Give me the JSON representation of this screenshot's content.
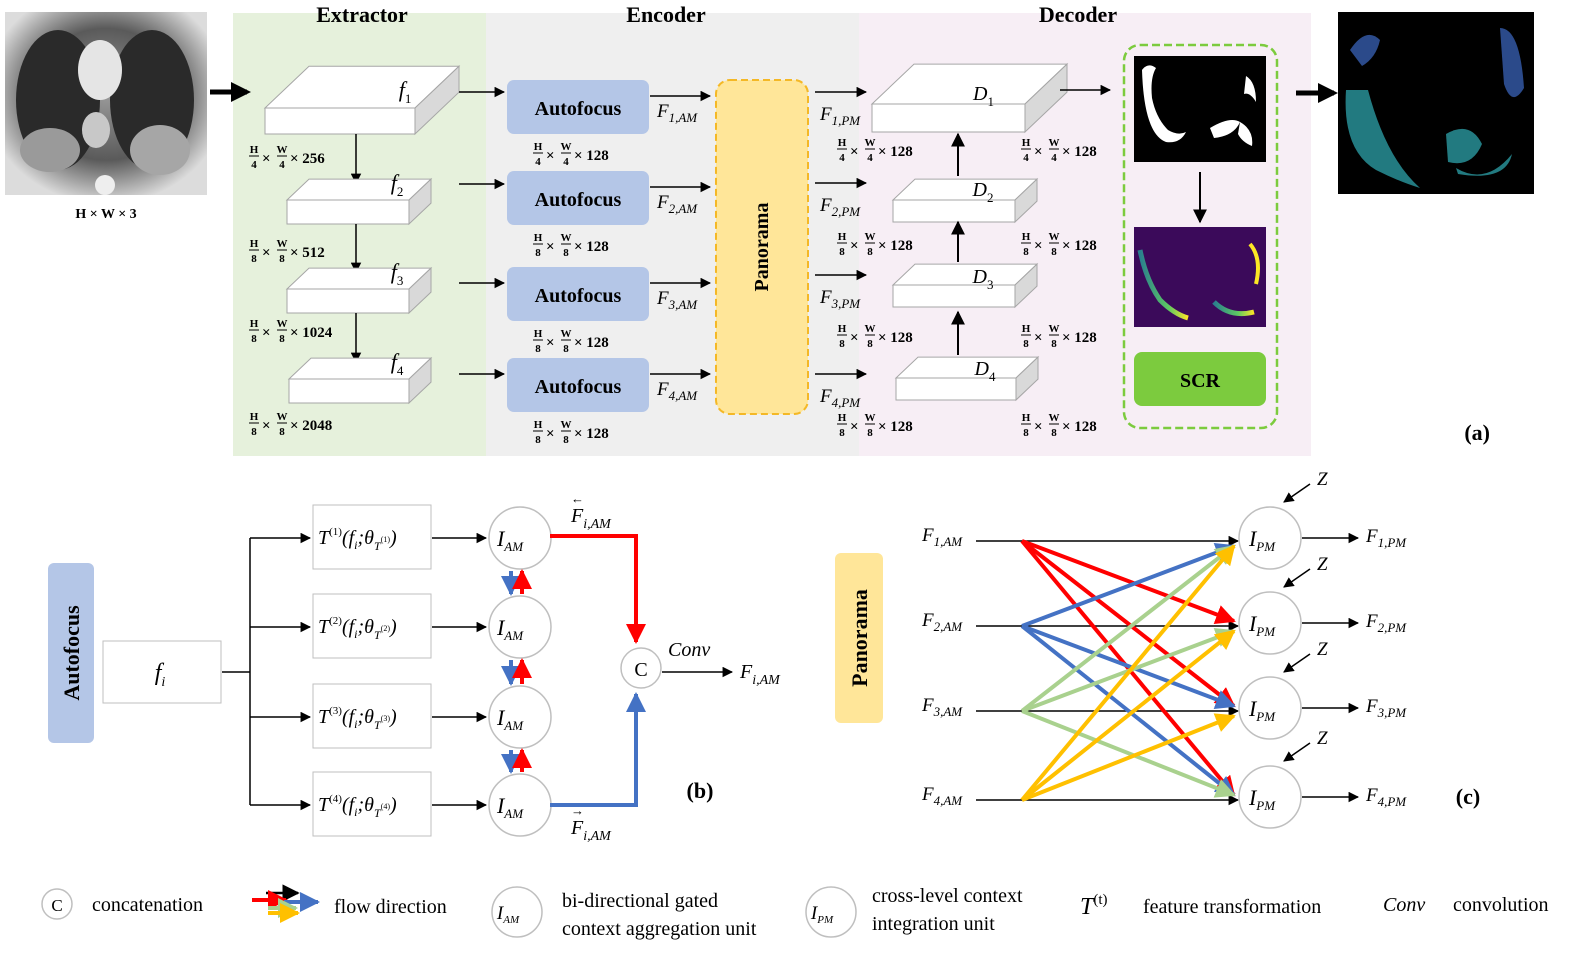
{
  "panel_a": {
    "sections": {
      "extractor": "Extractor",
      "encoder": "Encoder",
      "decoder": "Decoder"
    },
    "input_size": "H × W × 3",
    "extractor_blocks": [
      {
        "label": "f",
        "sub": "1",
        "dim": "256",
        "fh": "4",
        "fw": "4"
      },
      {
        "label": "f",
        "sub": "2",
        "dim": "512",
        "fh": "8",
        "fw": "8"
      },
      {
        "label": "f",
        "sub": "3",
        "dim": "1024",
        "fh": "8",
        "fw": "8"
      },
      {
        "label": "f",
        "sub": "4",
        "dim": "2048",
        "fh": "8",
        "fw": "8"
      }
    ],
    "autofocus_label": "Autofocus",
    "encoder_dims": [
      {
        "fh": "4",
        "fw": "4",
        "dim": "128"
      },
      {
        "fh": "8",
        "fw": "8",
        "dim": "128"
      },
      {
        "fh": "8",
        "fw": "8",
        "dim": "128"
      },
      {
        "fh": "8",
        "fw": "8",
        "dim": "128"
      }
    ],
    "am_outputs": [
      {
        "main": "F",
        "sub": "1,AM"
      },
      {
        "main": "F",
        "sub": "2,AM"
      },
      {
        "main": "F",
        "sub": "3,AM"
      },
      {
        "main": "F",
        "sub": "4,AM"
      }
    ],
    "panorama_label": "Panorama",
    "pm_outputs": [
      {
        "main": "F",
        "sub": "1,PM"
      },
      {
        "main": "F",
        "sub": "2,PM"
      },
      {
        "main": "F",
        "sub": "3,PM"
      },
      {
        "main": "F",
        "sub": "4,PM"
      }
    ],
    "decoder_blocks": [
      {
        "label": "D",
        "sub": "1"
      },
      {
        "label": "D",
        "sub": "2"
      },
      {
        "label": "D",
        "sub": "3"
      },
      {
        "label": "D",
        "sub": "4"
      }
    ],
    "decoder_dims_left": [
      {
        "fh": "4",
        "fw": "4",
        "dim": "128"
      },
      {
        "fh": "8",
        "fw": "8",
        "dim": "128"
      },
      {
        "fh": "8",
        "fw": "8",
        "dim": "128"
      },
      {
        "fh": "8",
        "fw": "8",
        "dim": "128"
      }
    ],
    "decoder_dims_right": [
      {
        "fh": "4",
        "fw": "4",
        "dim": "128"
      },
      {
        "fh": "8",
        "fw": "8",
        "dim": "128"
      },
      {
        "fh": "8",
        "fw": "8",
        "dim": "128"
      },
      {
        "fh": "8",
        "fw": "8",
        "dim": "128"
      }
    ],
    "scr_label": "SCR",
    "panel_tag": "(a)"
  },
  "panel_b": {
    "autofocus_label": "Autofocus",
    "input": {
      "main": "f",
      "sub": "i"
    },
    "transforms": [
      {
        "main": "T",
        "sup": "(1)",
        "arg": "(f",
        "argsub": "i",
        "rest": ";θ",
        "theta_sub": "T",
        "theta_sup": "(1)"
      },
      {
        "main": "T",
        "sup": "(2)",
        "arg": "(f",
        "argsub": "i",
        "rest": ";θ",
        "theta_sub": "T",
        "theta_sup": "(2)"
      },
      {
        "main": "T",
        "sup": "(3)",
        "arg": "(f",
        "argsub": "i",
        "rest": ";θ",
        "theta_sub": "T",
        "theta_sup": "(3)"
      },
      {
        "main": "T",
        "sup": "(4)",
        "arg": "(f",
        "argsub": "i",
        "rest": ";θ",
        "theta_sub": "T",
        "theta_sup": "(4)"
      }
    ],
    "unit": {
      "main": "I",
      "sub": "AM"
    },
    "backward_out": {
      "main": "F",
      "sub": "i,AM",
      "accent": "←"
    },
    "forward_out": {
      "main": "F",
      "sub": "i,AM",
      "accent": "→"
    },
    "concat_symbol": "C",
    "conv_label": "Conv",
    "output": {
      "main": "F",
      "sub": "i,AM"
    },
    "panel_tag": "(b)"
  },
  "panel_c": {
    "panorama_label": "Panorama",
    "inputs": [
      {
        "main": "F",
        "sub": "1,AM"
      },
      {
        "main": "F",
        "sub": "2,AM"
      },
      {
        "main": "F",
        "sub": "3,AM"
      },
      {
        "main": "F",
        "sub": "4,AM"
      }
    ],
    "unit": {
      "main": "I",
      "sub": "PM"
    },
    "z_label": "Z",
    "outputs": [
      {
        "main": "F",
        "sub": "1,PM"
      },
      {
        "main": "F",
        "sub": "2,PM"
      },
      {
        "main": "F",
        "sub": "3,PM"
      },
      {
        "main": "F",
        "sub": "4,PM"
      }
    ],
    "panel_tag": "(c)"
  },
  "legend": {
    "concat_symbol": "C",
    "concat_text": "concatenation",
    "flow_text": "flow direction",
    "am_unit": {
      "main": "I",
      "sub": "AM"
    },
    "am_text_1": "bi-directional gated",
    "am_text_2": "context aggregation unit",
    "pm_unit": {
      "main": "I",
      "sub": "PM"
    },
    "pm_text_1": "cross-level context",
    "pm_text_2": "integration unit",
    "t_symbol": {
      "main": "T",
      "sup": "(t)"
    },
    "t_text": "feature transformation",
    "conv_symbol": "Conv",
    "conv_text": "convolution"
  },
  "colors": {
    "extractor_bg": "#e6f1dc",
    "encoder_bg": "#efefef",
    "decoder_bg": "#f7eef5",
    "autofocus_fill": "#b4c6e7",
    "panorama_fill": "#ffe699",
    "panorama_border": "#f4b826",
    "scr_fill": "#7ccb3e",
    "scr_border": "#7ccb3e",
    "red": "#ff0000",
    "blue": "#4472c4",
    "green": "#a9d18e",
    "yellow": "#ffc000"
  }
}
